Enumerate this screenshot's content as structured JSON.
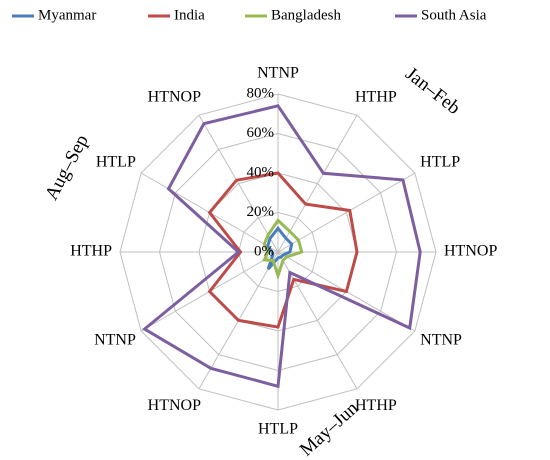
{
  "chart_data": {
    "type": "radar",
    "categories": [
      "NTNP",
      "HTHP",
      "HTLP",
      "HTNOP",
      "NTNP",
      "HTHP",
      "HTLP",
      "HTNOP",
      "NTNP",
      "HTHP",
      "HTLP",
      "HTNOP"
    ],
    "annotations": [
      "Jan–Feb",
      "May–Jun",
      "Aug–Sep"
    ],
    "series": [
      {
        "name": "Myanmar",
        "color": "#4a7ebb",
        "values": [
          12,
          8,
          8,
          6,
          3,
          3,
          3,
          10,
          3,
          3,
          6,
          8
        ]
      },
      {
        "name": "India",
        "color": "#be4b48",
        "values": [
          40,
          28,
          42,
          40,
          40,
          16,
          38,
          40,
          40,
          19,
          40,
          42
        ]
      },
      {
        "name": "Bangladesh",
        "color": "#98b954",
        "values": [
          16,
          12,
          12,
          12,
          5,
          5,
          12,
          5,
          8,
          5,
          8,
          10
        ]
      },
      {
        "name": "South Asia",
        "color": "#7d5fa0",
        "values": [
          74,
          46,
          73,
          72,
          77,
          12,
          68,
          68,
          78,
          20,
          64,
          75
        ]
      }
    ],
    "ylim": [
      0,
      80
    ],
    "yticks": [
      {
        "value": 0,
        "label": "0%"
      },
      {
        "value": 20,
        "label": "20%"
      },
      {
        "value": 40,
        "label": "40%"
      },
      {
        "value": 60,
        "label": "60%"
      },
      {
        "value": 80,
        "label": "80%"
      }
    ],
    "grid": true,
    "legend": "top"
  }
}
